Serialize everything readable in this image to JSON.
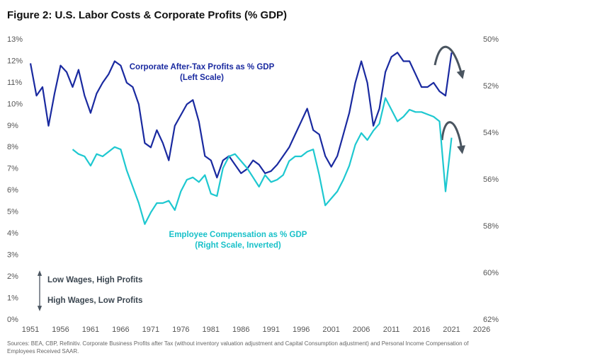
{
  "chart_data": {
    "type": "line",
    "title": "Figure 2: U.S. Labor Costs & Corporate Profits (% GDP)",
    "annotations": [
      "Corporate After-Tax Profits as % GDP",
      "(Left Scale)",
      "Employee Compensation as % GDP",
      "(Right Scale, Inverted)",
      "Low Wages, High Profits",
      "High Wages, Low Profits"
    ],
    "source": "Sources: BEA, CBP, Refinitiv. Corporate Business Profits after Tax (without inventory valuation adjustment and Capital Consumption adjustment) and Personal Income Compensation of Employees Received SAAR.",
    "xlim": [
      1951,
      2026
    ],
    "xticks": [
      1951,
      1956,
      1961,
      1966,
      1971,
      1976,
      1981,
      1986,
      1991,
      1996,
      2001,
      2006,
      2011,
      2016,
      2021,
      2026
    ],
    "ylim": [
      0,
      13
    ],
    "yticks": [
      {
        "value": 0,
        "label": "0%"
      },
      {
        "value": 1,
        "label": "1%"
      },
      {
        "value": 2,
        "label": "2%"
      },
      {
        "value": 3,
        "label": "3%"
      },
      {
        "value": 4,
        "label": "4%"
      },
      {
        "value": 5,
        "label": "5%"
      },
      {
        "value": 6,
        "label": "6%"
      },
      {
        "value": 7,
        "label": "7%"
      },
      {
        "value": 8,
        "label": "8%"
      },
      {
        "value": 9,
        "label": "9%"
      },
      {
        "value": 10,
        "label": "10%"
      },
      {
        "value": 11,
        "label": "11%"
      },
      {
        "value": 12,
        "label": "12%"
      },
      {
        "value": 13,
        "label": "13%"
      }
    ],
    "y2lim": [
      50,
      62
    ],
    "y2_inverted": true,
    "y2ticks": [
      {
        "value": 50,
        "label": "50%"
      },
      {
        "value": 52,
        "label": "52%"
      },
      {
        "value": 54,
        "label": "54%"
      },
      {
        "value": 56,
        "label": "56%"
      },
      {
        "value": 58,
        "label": "58%"
      },
      {
        "value": 60,
        "label": "60%"
      },
      {
        "value": 62,
        "label": "62%"
      }
    ],
    "grid": false,
    "series": [
      {
        "name": "Corporate After-Tax Profits as % GDP",
        "color": "#1a2aa0",
        "x": [
          1951,
          1952,
          1953,
          1954,
          1955,
          1956,
          1957,
          1958,
          1959,
          1960,
          1961,
          1962,
          1963,
          1964,
          1965,
          1966,
          1967,
          1968,
          1969,
          1970,
          1971,
          1972,
          1973,
          1974,
          1975,
          1976,
          1977,
          1978,
          1979,
          1980,
          1981,
          1982,
          1983,
          1984,
          1985,
          1986,
          1987,
          1988,
          1989,
          1990,
          1991,
          1992,
          1993,
          1994,
          1995,
          1996,
          1997,
          1998,
          1999,
          2000,
          2001,
          2002,
          2003,
          2004,
          2005,
          2006,
          2007,
          2008,
          2009,
          2010,
          2011,
          2012,
          2013,
          2014,
          2015,
          2016,
          2017,
          2018,
          2019,
          2020,
          2021
        ],
        "values": [
          11.9,
          10.4,
          10.8,
          9.0,
          10.5,
          11.8,
          11.5,
          10.8,
          11.6,
          10.4,
          9.6,
          10.5,
          11.0,
          11.4,
          12.0,
          11.8,
          11.0,
          10.8,
          10.0,
          8.2,
          8.0,
          8.8,
          8.2,
          7.4,
          9.0,
          9.5,
          10.0,
          10.2,
          9.2,
          7.6,
          7.4,
          6.6,
          7.4,
          7.6,
          7.2,
          6.8,
          7.0,
          7.4,
          7.2,
          6.8,
          6.9,
          7.2,
          7.6,
          8.0,
          8.6,
          9.2,
          9.8,
          8.8,
          8.6,
          7.6,
          7.1,
          7.6,
          8.6,
          9.6,
          11.0,
          12.0,
          11.0,
          9.0,
          9.8,
          11.5,
          12.2,
          12.4,
          12.0,
          12.0,
          11.4,
          10.8,
          10.8,
          11.0,
          10.6,
          10.4,
          12.4
        ]
      },
      {
        "name": "Employee Compensation as % GDP",
        "color": "#1ec8d0",
        "axis": "y2",
        "x": [
          1958,
          1959,
          1960,
          1961,
          1962,
          1963,
          1964,
          1965,
          1966,
          1967,
          1968,
          1969,
          1970,
          1971,
          1972,
          1973,
          1974,
          1975,
          1976,
          1977,
          1978,
          1979,
          1980,
          1981,
          1982,
          1983,
          1984,
          1985,
          1986,
          1987,
          1988,
          1989,
          1990,
          1991,
          1992,
          1993,
          1994,
          1995,
          1996,
          1997,
          1998,
          1999,
          2000,
          2001,
          2002,
          2003,
          2004,
          2005,
          2006,
          2007,
          2008,
          2009,
          2010,
          2011,
          2012,
          2013,
          2014,
          2015,
          2016,
          2017,
          2018,
          2019,
          2020,
          2021
        ],
        "values": [
          54.7,
          54.9,
          55.0,
          55.4,
          54.9,
          55.0,
          54.8,
          54.6,
          54.7,
          55.6,
          56.3,
          57.0,
          57.9,
          57.4,
          57.0,
          57.0,
          56.9,
          57.3,
          56.5,
          56.0,
          55.9,
          56.1,
          55.8,
          56.6,
          56.7,
          55.5,
          55.0,
          54.9,
          55.2,
          55.5,
          55.9,
          56.3,
          55.8,
          56.1,
          56.0,
          55.8,
          55.2,
          55.0,
          55.0,
          54.8,
          54.7,
          55.8,
          57.1,
          56.8,
          56.5,
          56.0,
          55.4,
          54.5,
          54.0,
          54.3,
          53.9,
          53.6,
          52.5,
          53.0,
          53.5,
          53.3,
          53.0,
          53.1,
          53.1,
          53.2,
          53.3,
          53.5,
          56.5,
          54.2
        ]
      }
    ]
  }
}
